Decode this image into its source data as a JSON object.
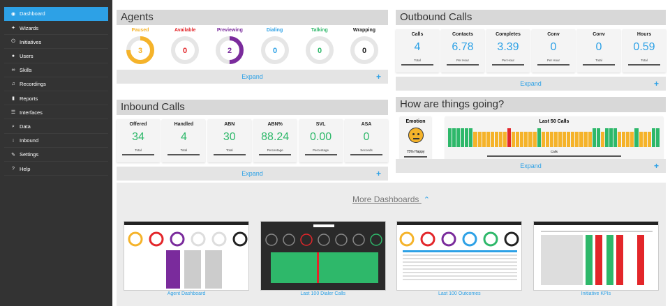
{
  "sidebar": {
    "items": [
      {
        "label": "Dashboard",
        "icon": "dashboard-icon",
        "glyph": "◉"
      },
      {
        "label": "Wizards",
        "icon": "wand-icon",
        "glyph": "✦"
      },
      {
        "label": "Initiatives",
        "icon": "power-icon",
        "glyph": "⏻"
      },
      {
        "label": "Users",
        "icon": "user-icon",
        "glyph": "●"
      },
      {
        "label": "Skills",
        "icon": "link-icon",
        "glyph": "∞"
      },
      {
        "label": "Recordings",
        "icon": "music-icon",
        "glyph": "♫"
      },
      {
        "label": "Reports",
        "icon": "bar-chart-icon",
        "glyph": "▮"
      },
      {
        "label": "Interfaces",
        "icon": "list-icon",
        "glyph": "☰"
      },
      {
        "label": "Data",
        "icon": "search-icon",
        "glyph": "⌕"
      },
      {
        "label": "Inbound",
        "icon": "arrow-down-icon",
        "glyph": "↓"
      },
      {
        "label": "Settings",
        "icon": "wrench-icon",
        "glyph": "✎"
      },
      {
        "label": "Help",
        "icon": "help-icon",
        "glyph": "?"
      }
    ]
  },
  "agents": {
    "title": "Agents",
    "expand": "Expand",
    "plus": "+",
    "items": [
      {
        "label": "Paused",
        "value": "3",
        "color": "#f5b32a",
        "fraction": 0.75
      },
      {
        "label": "Available",
        "value": "0",
        "color": "#e3262a",
        "fraction": 0
      },
      {
        "label": "Previewing",
        "value": "2",
        "color": "#7a2b9c",
        "fraction": 0.5
      },
      {
        "label": "Dialing",
        "value": "0",
        "color": "#2da1e6",
        "fraction": 0
      },
      {
        "label": "Talking",
        "value": "0",
        "color": "#2eb86a",
        "fraction": 0
      },
      {
        "label": "Wrapping",
        "value": "0",
        "color": "#222222",
        "fraction": 0
      }
    ]
  },
  "outbound": {
    "title": "Outbound Calls",
    "expand": "Expand",
    "plus": "+",
    "cards": [
      {
        "label": "Calls",
        "value": "4",
        "sub": "Total"
      },
      {
        "label": "Contacts",
        "value": "6.78",
        "sub": "Per Hour"
      },
      {
        "label": "Completes",
        "value": "3.39",
        "sub": "Per Hour"
      },
      {
        "label": "Conv",
        "value": "0",
        "sub": "Per Hour"
      },
      {
        "label": "Conv",
        "value": "0",
        "sub": "Total"
      },
      {
        "label": "Hours",
        "value": "0.59",
        "sub": "Total"
      }
    ]
  },
  "inbound": {
    "title": "Inbound Calls",
    "expand": "Expand",
    "plus": "+",
    "cards": [
      {
        "label": "Offered",
        "value": "34",
        "sub": "Total"
      },
      {
        "label": "Handled",
        "value": "4",
        "sub": "Total"
      },
      {
        "label": "ABN",
        "value": "30",
        "sub": "Total"
      },
      {
        "label": "ABN%",
        "value": "88.24",
        "sub": "Percentage"
      },
      {
        "label": "SVL",
        "value": "0.00",
        "sub": "Percentage"
      },
      {
        "label": "ASA",
        "value": "0",
        "sub": "Seconds"
      }
    ]
  },
  "going": {
    "title": "How are things going?",
    "expand": "Expand",
    "plus": "+",
    "emotion_label": "Emotion",
    "emotion_sub": "75% Happy",
    "calls_label": "Last 50 Calls",
    "calls_sub": "Calls",
    "call_colors": [
      "#2eb86a",
      "#2eb86a",
      "#2eb86a",
      "#2eb86a",
      "#2eb86a",
      "#2eb86a",
      "#f5b32a",
      "#f5b32a",
      "#f5b32a",
      "#f5b32a",
      "#f5b32a",
      "#f5b32a",
      "#f5b32a",
      "#f5b32a",
      "#e3262a",
      "#f5b32a",
      "#f5b32a",
      "#f5b32a",
      "#f5b32a",
      "#f5b32a",
      "#f5b32a",
      "#2eb86a",
      "#f5b32a",
      "#f5b32a",
      "#f5b32a",
      "#f5b32a",
      "#f5b32a",
      "#f5b32a",
      "#f5b32a",
      "#f5b32a",
      "#f5b32a",
      "#f5b32a",
      "#f5b32a",
      "#f5b32a",
      "#2eb86a",
      "#2eb86a",
      "#f5b32a",
      "#2eb86a",
      "#2eb86a",
      "#2eb86a",
      "#f5b32a",
      "#f5b32a",
      "#f5b32a",
      "#f5b32a",
      "#2eb86a",
      "#f5b32a",
      "#f5b32a",
      "#f5b32a",
      "#2eb86a",
      "#2eb86a"
    ]
  },
  "more": {
    "title": "More Dashboards",
    "chevron": "⌃",
    "thumbs": [
      {
        "caption": "Agent Dashboard"
      },
      {
        "caption": "Last 100 Dialer Calls"
      },
      {
        "caption": "Last 100 Outcomes"
      },
      {
        "caption": "Initiative KPIs"
      }
    ]
  }
}
